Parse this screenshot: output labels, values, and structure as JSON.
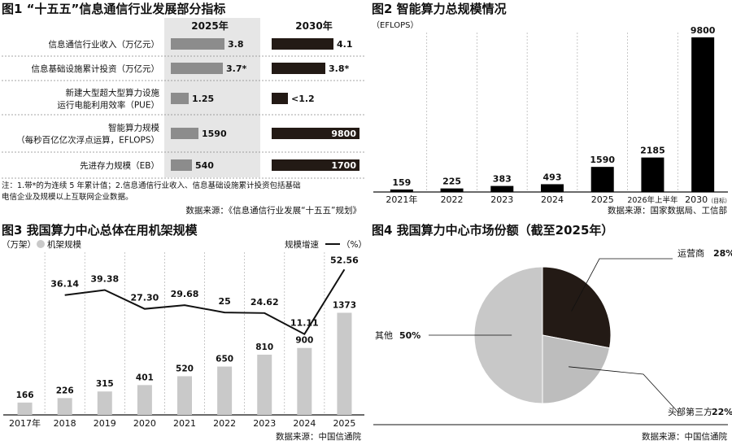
{
  "fig1": {
    "title": "图1 “十五五”信息通信行业发展部分指标",
    "col2025": "2025年",
    "col2030": "2030年",
    "rows": [
      {
        "label_lines": [
          "信息通信行业收入（万亿元）"
        ],
        "v2025": 3.8,
        "t2025": "3.8",
        "v2030": 4.1,
        "t2030": "4.1"
      },
      {
        "label_lines": [
          "信息基础设施累计投资（万亿元）"
        ],
        "v2025": 3.7,
        "t2025": "3.7*",
        "v2030": 3.8,
        "t2030": "3.8*"
      },
      {
        "label_lines": [
          "新建大型超大型算力设施",
          "运行电能利用效率（PUE）"
        ],
        "v2025": 1.25,
        "t2025": "1.25",
        "v2030": 1.2,
        "t2030": "<1.2"
      },
      {
        "label_lines": [
          "智能算力规模",
          "（每秒百亿亿次浮点运算，EFLOPS）"
        ],
        "v2025": 1590,
        "t2025": "1590",
        "v2030": 9800,
        "t2030": "9800"
      },
      {
        "label_lines": [
          "先进存力规模（EB）"
        ],
        "v2025": 540,
        "t2025": "540",
        "v2030": 1700,
        "t2030": "1700"
      }
    ],
    "note_lines": [
      "注：1.带*的为连续 5 年累计值；2.信息通信行业收入、信息基础设施累计投资包括基础",
      "电信企业及规模以上互联网企业数据。"
    ],
    "source": "数据来源：《信息通信行业发展“十五五”规划》"
  },
  "chart_data": [
    {
      "type": "table",
      "title": "图1 “十五五”信息通信行业发展部分指标",
      "columns": [
        "2025年",
        "2030年"
      ],
      "rows": [
        "信息通信行业收入（万亿元）",
        "信息基础设施累计投资（万亿元）",
        "新建大型超大型算力设施运行电能利用效率（PUE）",
        "智能算力规模（每秒百亿亿次浮点运算，EFLOPS）",
        "先进存力规模（EB）"
      ],
      "values_2025": [
        "3.8",
        "3.7*",
        "1.25",
        "1590",
        "540"
      ],
      "values_2030": [
        "4.1",
        "3.8*",
        "<1.2",
        "9800",
        "1700"
      ]
    },
    {
      "type": "bar",
      "title": "图2 智能算力总规模情况",
      "unit": "（EFLOPS）",
      "categories": [
        "2021年",
        "2022",
        "2023",
        "2024",
        "2025",
        "2026年上半年",
        "2030"
      ],
      "category_note": "（目标）",
      "values": [
        159,
        225,
        383,
        493,
        1590,
        2185,
        9800
      ],
      "ylim": [
        0,
        10000
      ],
      "source": "数据来源：国家数据局、工信部"
    },
    {
      "type": "bar",
      "title": "图3 我国算力中心总体在用机架规模",
      "unit_left": "（万架）",
      "bar_legend": "机架规模",
      "line_legend": "规模增速",
      "unit_right": "（%）",
      "categories": [
        "2017年",
        "2018",
        "2019",
        "2020",
        "2021",
        "2022",
        "2023",
        "2024",
        "2025"
      ],
      "series": [
        {
          "name": "机架规模",
          "type": "bar",
          "values": [
            166,
            226,
            315,
            401,
            520,
            650,
            810,
            900,
            1373
          ]
        },
        {
          "name": "规模增速",
          "type": "line",
          "x": [
            "2018",
            "2019",
            "2020",
            "2021",
            "2022",
            "2023",
            "2024",
            "2025"
          ],
          "values": [
            36.14,
            39.38,
            27.3,
            29.68,
            25,
            24.62,
            11.11,
            52.56
          ],
          "labels": [
            "36.14",
            "39.38",
            "27.30",
            "29.68",
            "25",
            "24.62",
            "11.11",
            "52.56"
          ]
        }
      ],
      "source": "数据来源：中国信通院"
    },
    {
      "type": "pie",
      "title": "图4 我国算力中心市场份额（截至2025年）",
      "slices": [
        {
          "label": "运营商",
          "value": 28,
          "text": "28%",
          "color": "#231a15"
        },
        {
          "label": "头部第三方",
          "value": 22,
          "text": "22%",
          "color": "#bdbdbd"
        },
        {
          "label": "其他",
          "value": 50,
          "text": "50%",
          "color": "#c8c8c8"
        }
      ],
      "source": "数据来源：中国信通院"
    }
  ],
  "colors": {
    "dark": "#231a15",
    "mid": "#8c8c8c",
    "light": "#c9c9c9",
    "shade": "#e6e6e6",
    "grid": "#b0b0b0"
  }
}
